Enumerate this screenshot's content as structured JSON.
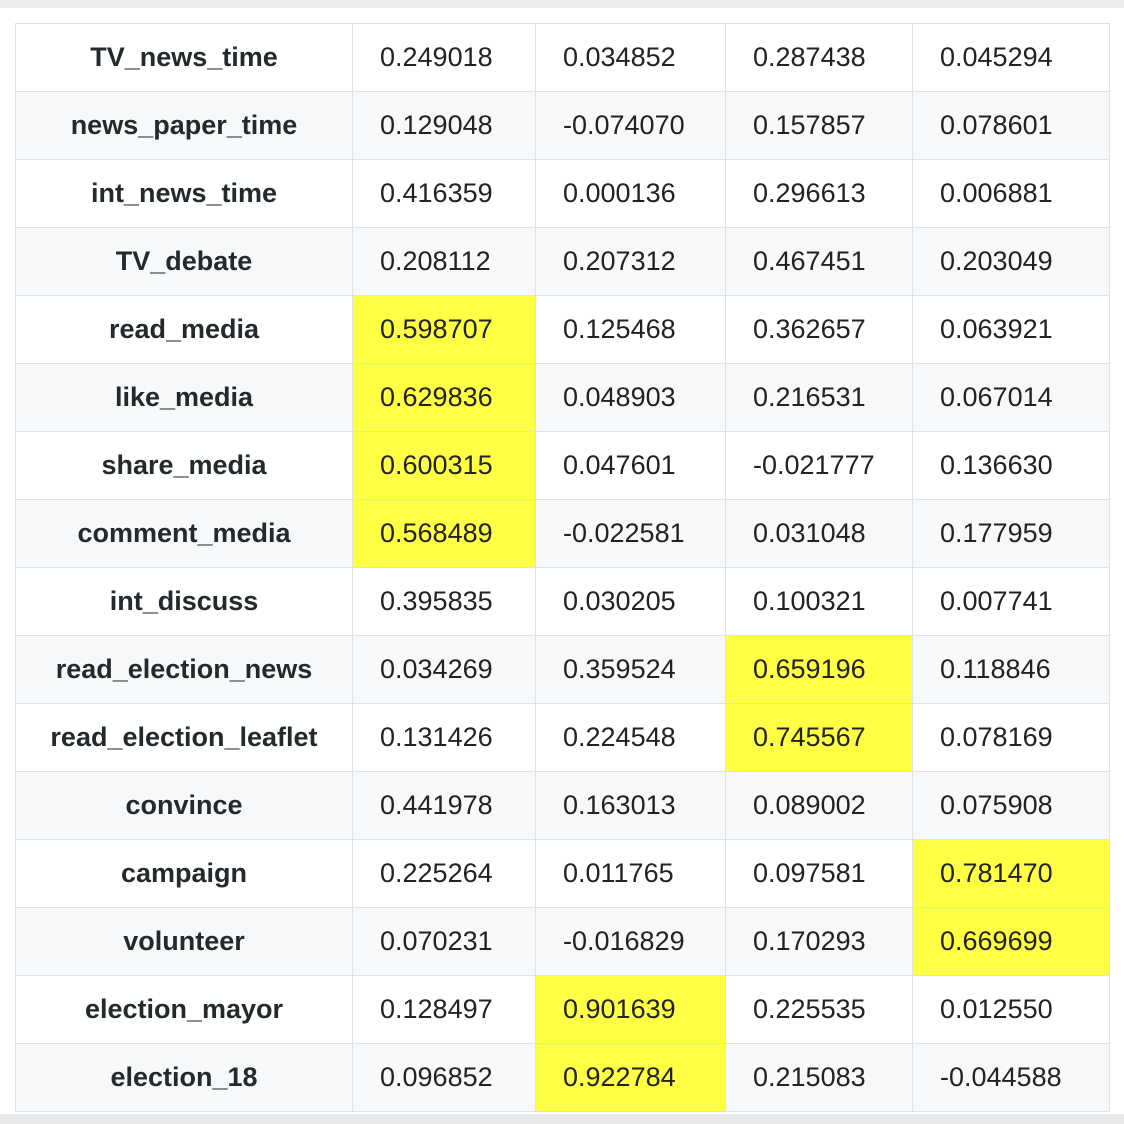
{
  "highlight_color": "#ffff44",
  "rows": [
    {
      "label": "TV_news_time",
      "values": [
        "0.249018",
        "0.034852",
        "0.287438",
        "0.045294"
      ],
      "highlight": [
        false,
        false,
        false,
        false
      ]
    },
    {
      "label": "news_paper_time",
      "values": [
        "0.129048",
        "-0.074070",
        "0.157857",
        "0.078601"
      ],
      "highlight": [
        false,
        false,
        false,
        false
      ]
    },
    {
      "label": "int_news_time",
      "values": [
        "0.416359",
        "0.000136",
        "0.296613",
        "0.006881"
      ],
      "highlight": [
        false,
        false,
        false,
        false
      ]
    },
    {
      "label": "TV_debate",
      "values": [
        "0.208112",
        "0.207312",
        "0.467451",
        "0.203049"
      ],
      "highlight": [
        false,
        false,
        false,
        false
      ]
    },
    {
      "label": "read_media",
      "values": [
        "0.598707",
        "0.125468",
        "0.362657",
        "0.063921"
      ],
      "highlight": [
        true,
        false,
        false,
        false
      ]
    },
    {
      "label": "like_media",
      "values": [
        "0.629836",
        "0.048903",
        "0.216531",
        "0.067014"
      ],
      "highlight": [
        true,
        false,
        false,
        false
      ]
    },
    {
      "label": "share_media",
      "values": [
        "0.600315",
        "0.047601",
        "-0.021777",
        "0.136630"
      ],
      "highlight": [
        true,
        false,
        false,
        false
      ]
    },
    {
      "label": "comment_media",
      "values": [
        "0.568489",
        "-0.022581",
        "0.031048",
        "0.177959"
      ],
      "highlight": [
        true,
        false,
        false,
        false
      ]
    },
    {
      "label": "int_discuss",
      "values": [
        "0.395835",
        "0.030205",
        "0.100321",
        "0.007741"
      ],
      "highlight": [
        false,
        false,
        false,
        false
      ]
    },
    {
      "label": "read_election_news",
      "values": [
        "0.034269",
        "0.359524",
        "0.659196",
        "0.118846"
      ],
      "highlight": [
        false,
        false,
        true,
        false
      ]
    },
    {
      "label": "read_election_leaflet",
      "values": [
        "0.131426",
        "0.224548",
        "0.745567",
        "0.078169"
      ],
      "highlight": [
        false,
        false,
        true,
        false
      ]
    },
    {
      "label": "convince",
      "values": [
        "0.441978",
        "0.163013",
        "0.089002",
        "0.075908"
      ],
      "highlight": [
        false,
        false,
        false,
        false
      ]
    },
    {
      "label": "campaign",
      "values": [
        "0.225264",
        "0.011765",
        "0.097581",
        "0.781470"
      ],
      "highlight": [
        false,
        false,
        false,
        true
      ]
    },
    {
      "label": "volunteer",
      "values": [
        "0.070231",
        "-0.016829",
        "0.170293",
        "0.669699"
      ],
      "highlight": [
        false,
        false,
        false,
        true
      ]
    },
    {
      "label": "election_mayor",
      "values": [
        "0.128497",
        "0.901639",
        "0.225535",
        "0.012550"
      ],
      "highlight": [
        false,
        true,
        false,
        false
      ]
    },
    {
      "label": "election_18",
      "values": [
        "0.096852",
        "0.922784",
        "0.215083",
        "-0.044588"
      ],
      "highlight": [
        false,
        true,
        false,
        false
      ]
    }
  ]
}
